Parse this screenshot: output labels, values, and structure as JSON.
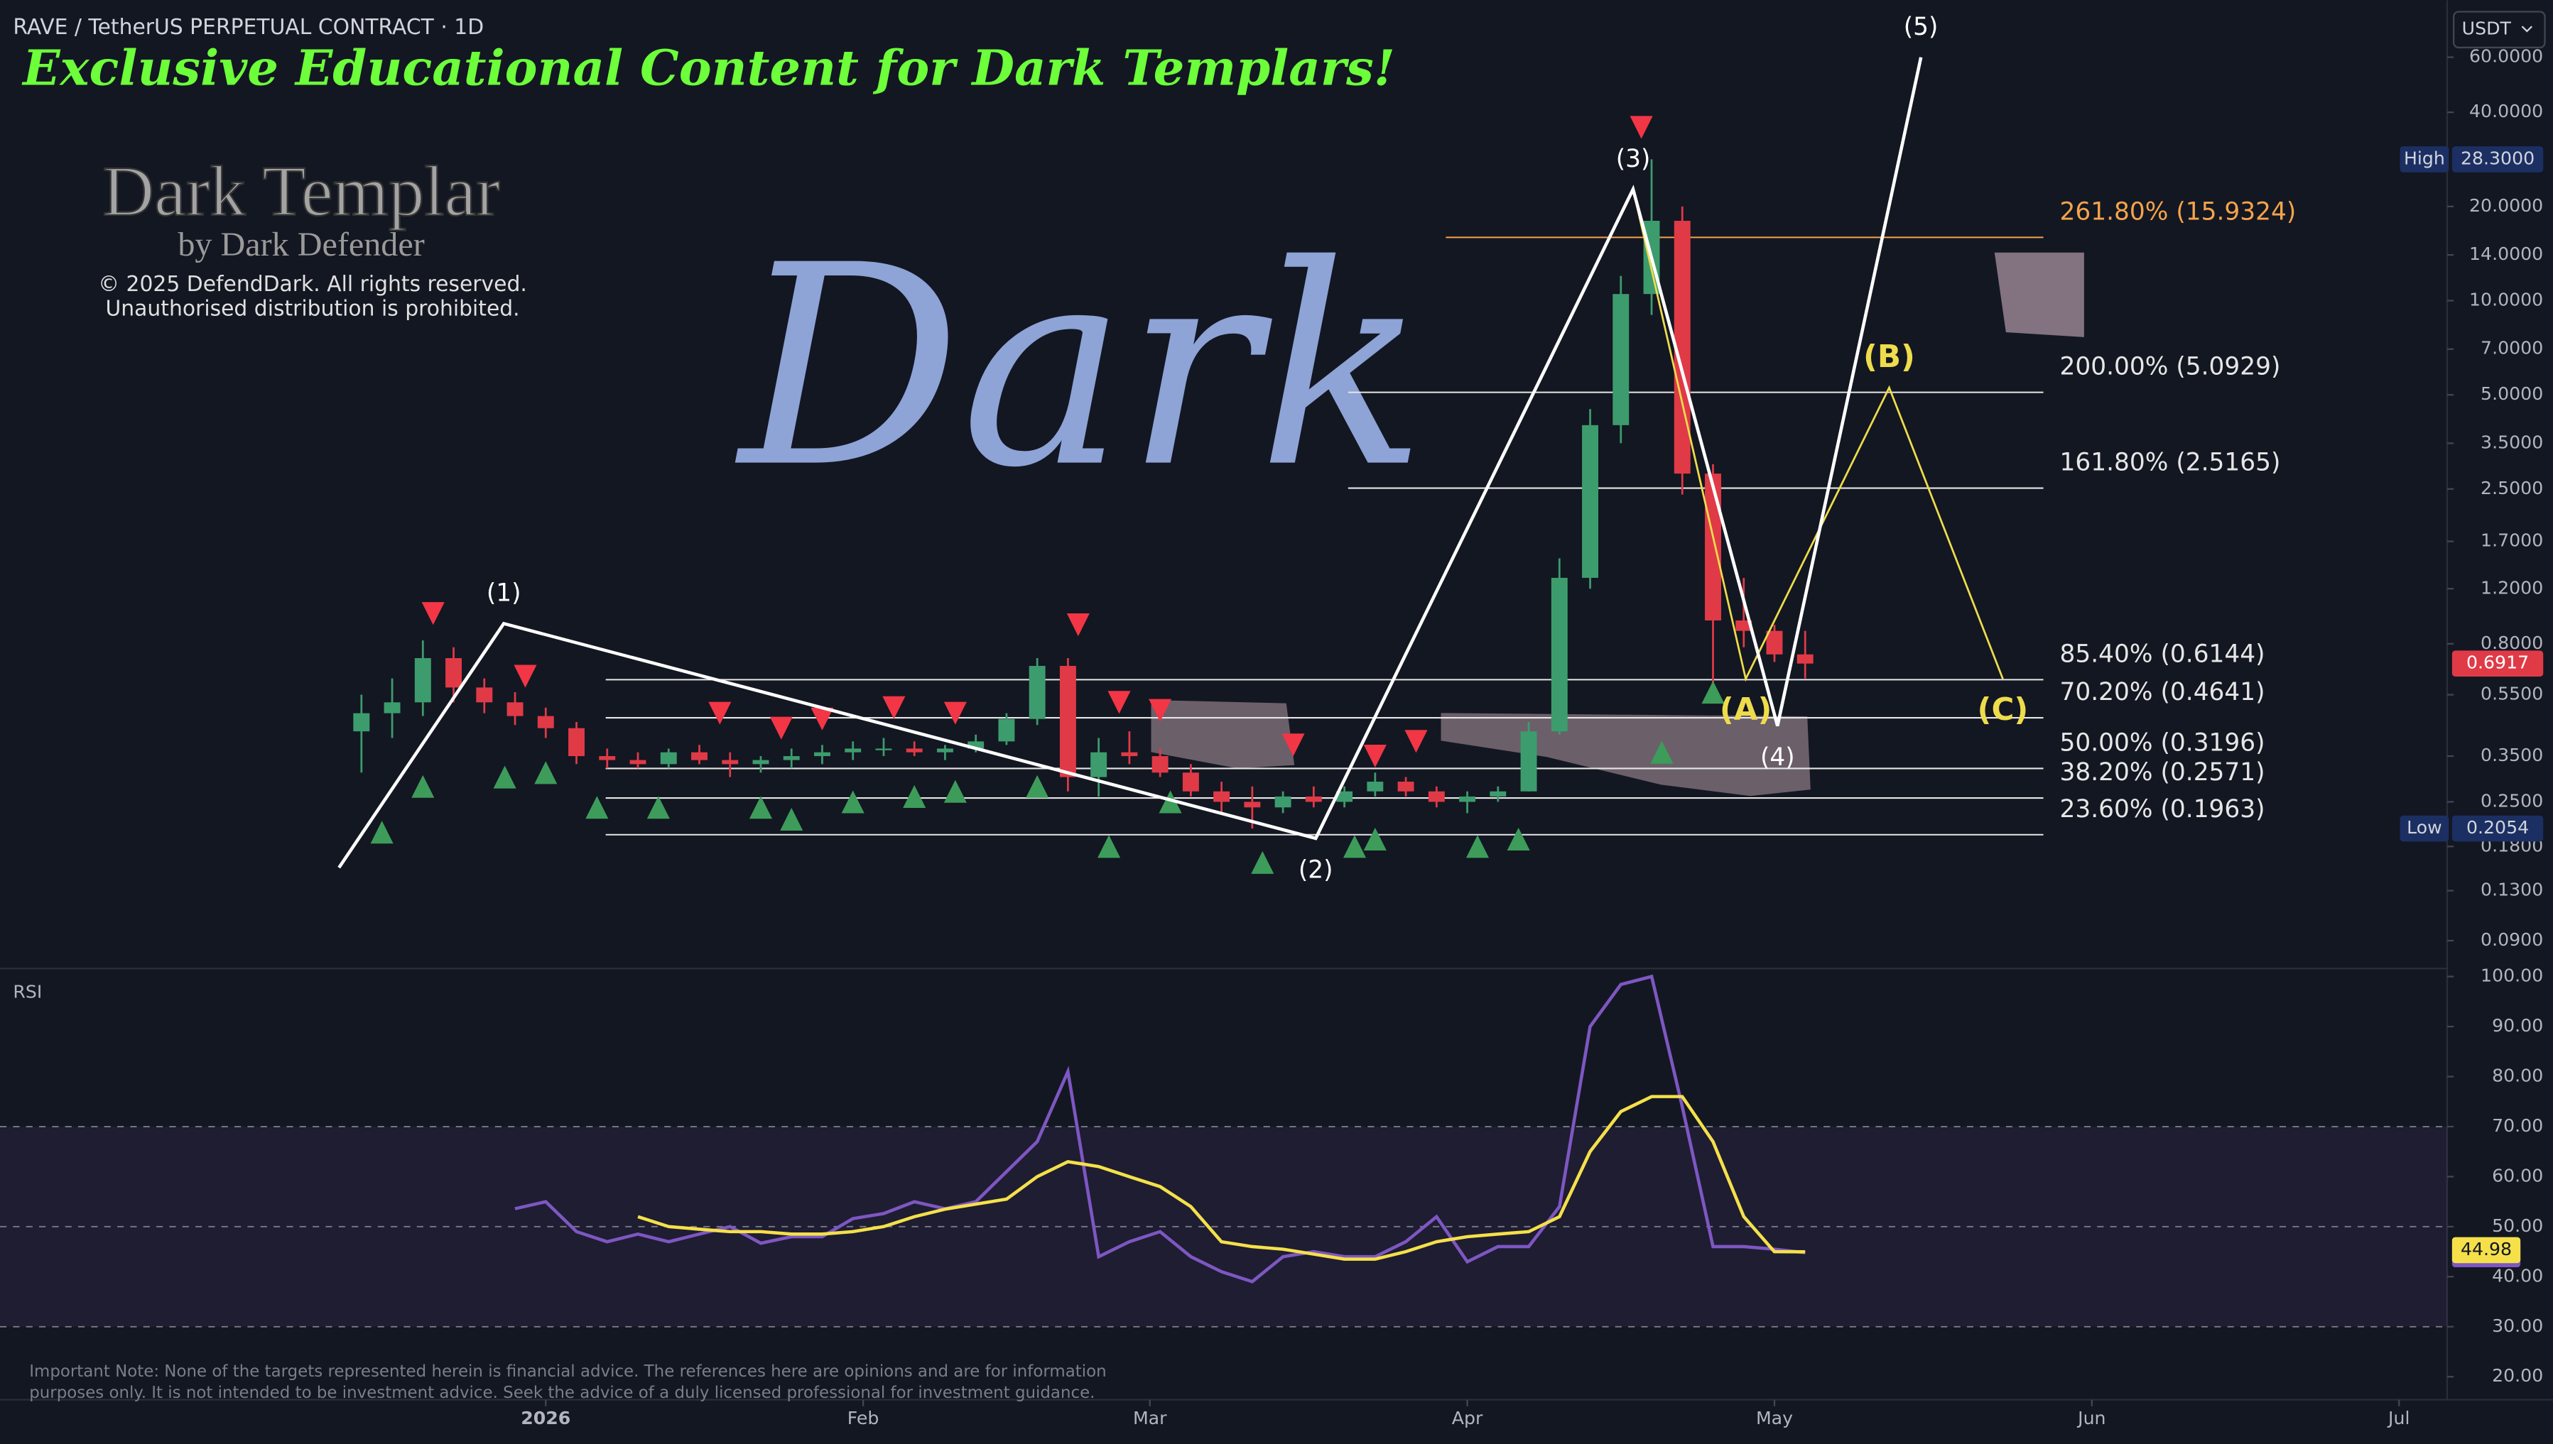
{
  "watermark": {
    "headline": "Exclusive Educational Content for Dark Templars!",
    "brand": "Dark Templar",
    "byline": "by Dark Defender",
    "copyright": "© 2025 DefendDark. All rights reserved.",
    "notice": "Unauthorised distribution is prohibited.",
    "word": "Dark"
  },
  "note": [
    "Important Note: None of the targets represented herein is financial advice. The references here are opinions and are for information",
    "purposes only. It is not intended to be investment advice. Seek the advice of a duly licensed professional for investment guidance."
  ],
  "currency": "USDT",
  "chart_data": [
    {
      "type": "candlestick",
      "title": "RAVE / TetherUS PERPETUAL CONTRACT · 1D",
      "x": [
        -18,
        -15,
        -12,
        -9,
        -6,
        -3,
        0,
        3,
        6,
        9,
        12,
        15,
        18,
        21,
        24,
        27,
        30,
        33,
        36,
        39,
        42,
        45,
        48,
        51,
        54,
        57,
        60,
        63,
        66,
        69,
        72,
        75,
        78,
        81,
        84,
        87,
        90,
        93,
        96,
        99,
        102,
        105,
        108,
        111,
        114,
        117,
        120,
        123
      ],
      "open": [
        0.42,
        0.48,
        0.52,
        0.72,
        0.58,
        0.52,
        0.47,
        0.43,
        0.35,
        0.34,
        0.33,
        0.36,
        0.34,
        0.33,
        0.34,
        0.35,
        0.36,
        0.37,
        0.37,
        0.36,
        0.37,
        0.39,
        0.46,
        0.68,
        0.3,
        0.36,
        0.35,
        0.31,
        0.27,
        0.25,
        0.24,
        0.26,
        0.25,
        0.27,
        0.29,
        0.27,
        0.25,
        0.26,
        0.27,
        0.42,
        1.3,
        4.0,
        10.5,
        18,
        2.8,
        0.95,
        0.88,
        0.74
      ],
      "high": [
        0.55,
        0.62,
        0.82,
        0.78,
        0.62,
        0.56,
        0.5,
        0.45,
        0.37,
        0.36,
        0.37,
        0.38,
        0.36,
        0.35,
        0.37,
        0.38,
        0.39,
        0.4,
        0.39,
        0.38,
        0.41,
        0.48,
        0.72,
        0.72,
        0.4,
        0.42,
        0.37,
        0.33,
        0.29,
        0.28,
        0.27,
        0.28,
        0.28,
        0.31,
        0.3,
        0.28,
        0.27,
        0.28,
        0.45,
        1.5,
        4.5,
        12,
        28.3,
        20,
        3.0,
        1.3,
        0.92,
        0.88
      ],
      "low": [
        0.31,
        0.4,
        0.47,
        0.52,
        0.48,
        0.44,
        0.4,
        0.33,
        0.32,
        0.32,
        0.32,
        0.33,
        0.3,
        0.31,
        0.32,
        0.33,
        0.34,
        0.35,
        0.35,
        0.34,
        0.36,
        0.38,
        0.44,
        0.27,
        0.26,
        0.33,
        0.3,
        0.26,
        0.23,
        0.2054,
        0.23,
        0.24,
        0.24,
        0.26,
        0.26,
        0.24,
        0.23,
        0.25,
        0.27,
        0.41,
        1.2,
        3.5,
        9,
        2.4,
        0.58,
        0.78,
        0.7,
        0.62
      ],
      "close": [
        0.48,
        0.52,
        0.72,
        0.58,
        0.52,
        0.47,
        0.43,
        0.35,
        0.34,
        0.33,
        0.36,
        0.34,
        0.33,
        0.34,
        0.35,
        0.36,
        0.37,
        0.37,
        0.36,
        0.37,
        0.39,
        0.46,
        0.68,
        0.3,
        0.36,
        0.35,
        0.31,
        0.27,
        0.25,
        0.24,
        0.26,
        0.25,
        0.27,
        0.29,
        0.27,
        0.25,
        0.26,
        0.27,
        0.42,
        1.3,
        4.0,
        10.5,
        18,
        2.8,
        0.95,
        0.88,
        0.74,
        0.6917
      ],
      "up_color": "#3d9c6d",
      "down_color": "#e03a47",
      "log_scale": true,
      "grid": false,
      "xlim": [
        -53.3,
        185.7
      ],
      "ylim": [
        0.0733,
        91.2
      ],
      "xticks": [
        {
          "value": 0,
          "label": "2026"
        },
        {
          "value": 31,
          "label": "Feb"
        },
        {
          "value": 59,
          "label": "Mar"
        },
        {
          "value": 90,
          "label": "Apr"
        },
        {
          "value": 120,
          "label": "May"
        },
        {
          "value": 151,
          "label": "Jun"
        },
        {
          "value": 181,
          "label": "Jul"
        }
      ],
      "yticks": [
        {
          "value": 60,
          "label": "60.0000"
        },
        {
          "value": 40,
          "label": "40.0000"
        },
        {
          "value": 20,
          "label": "20.0000"
        },
        {
          "value": 14,
          "label": "14.0000"
        },
        {
          "value": 10,
          "label": "10.0000"
        },
        {
          "value": 7,
          "label": "7.0000"
        },
        {
          "value": 5,
          "label": "5.0000"
        },
        {
          "value": 3.5,
          "label": "3.5000"
        },
        {
          "value": 2.5,
          "label": "2.5000"
        },
        {
          "value": 1.7,
          "label": "1.7000"
        },
        {
          "value": 1.2,
          "label": "1.2000"
        },
        {
          "value": 0.8,
          "label": "0.8000"
        },
        {
          "value": 0.55,
          "label": "0.5500"
        },
        {
          "value": 0.35,
          "label": "0.3500"
        },
        {
          "value": 0.25,
          "label": "0.2500"
        },
        {
          "value": 0.18,
          "label": "0.1800"
        },
        {
          "value": 0.13,
          "label": "0.1300"
        },
        {
          "value": 0.09,
          "label": "0.0900"
        }
      ],
      "high_label": "High",
      "high_value_label": "28.3000",
      "low_label": "Low",
      "fib_levels": [
        {
          "label": "261.80% (15.9324)",
          "value": 15.9324,
          "color": "#f5a34b"
        },
        {
          "label": "200.00% (5.0929)",
          "value": 5.0929,
          "color": "#e6e6e6"
        },
        {
          "label": "161.80% (2.5165)",
          "value": 2.5165,
          "color": "#e6e6e6"
        },
        {
          "label": "85.40% (0.6144)",
          "value": 0.6144,
          "color": "#e6e6e6"
        },
        {
          "label": "70.20% (0.4641)",
          "value": 0.4641,
          "color": "#e6e6e6"
        },
        {
          "label": "50.00% (0.3196)",
          "value": 0.3196,
          "color": "#e6e6e6"
        },
        {
          "label": "38.20% (0.2571)",
          "value": 0.2571,
          "color": "#e6e6e6"
        },
        {
          "label": "23.60% (0.1963)",
          "value": 0.1963,
          "color": "#e6e6e6"
        }
      ],
      "waves": {
        "x": [
          -20.2,
          -4.1,
          75.2,
          106.2,
          120.3,
          134.3
        ],
        "y": [
          0.154,
          0.929,
          0.191,
          22.7,
          0.437,
          60
        ],
        "labels": [
          null,
          "(1)",
          "(2)",
          "(3)",
          "(4)",
          "(5)"
        ],
        "color": "#ffffff"
      },
      "corrective": {
        "x": [
          106.2,
          117.2,
          131.2,
          142.3
        ],
        "y": [
          22.7,
          0.618,
          5.27,
          0.618
        ],
        "labels": [
          null,
          "(A)",
          "(B)",
          "(C)"
        ],
        "color": "#eedc4c"
      },
      "sell_signals": {
        "x": [
          -11,
          -2,
          17,
          23,
          27,
          34,
          40,
          52,
          56,
          60,
          73,
          81,
          85,
          107
        ],
        "y": [
          1.0,
          0.63,
          0.48,
          0.43,
          0.46,
          0.5,
          0.48,
          0.92,
          0.52,
          0.49,
          0.38,
          0.35,
          0.39,
          35.8
        ],
        "color": "#f23645"
      },
      "buy_signals": {
        "x": [
          -16,
          -12,
          -4,
          0,
          5,
          11,
          21,
          24,
          30,
          36,
          40,
          48,
          55,
          61,
          70,
          79,
          81,
          91,
          95,
          109,
          114
        ],
        "y": [
          0.2,
          0.28,
          0.3,
          0.31,
          0.24,
          0.24,
          0.24,
          0.22,
          0.25,
          0.26,
          0.27,
          0.28,
          0.18,
          0.25,
          0.16,
          0.18,
          0.19,
          0.18,
          0.19,
          0.36,
          0.56
        ],
        "color": "#3d9c5a"
      }
    },
    {
      "type": "line",
      "title": "RSI",
      "x": [
        -3,
        0,
        3,
        6,
        9,
        12,
        15,
        18,
        21,
        24,
        27,
        30,
        33,
        36,
        39,
        42,
        45,
        48,
        51,
        54,
        57,
        60,
        63,
        66,
        69,
        72,
        75,
        78,
        81,
        84,
        87,
        90,
        93,
        96,
        99,
        102,
        105,
        108,
        111,
        114,
        117,
        120,
        123
      ],
      "series": [
        {
          "color": "#7e57c2",
          "values": [
            53.6,
            55,
            49,
            47,
            48.5,
            47,
            48.5,
            50,
            46.7,
            48,
            48,
            51.6,
            52.6,
            55,
            53.6,
            55,
            61,
            67,
            81,
            44,
            47,
            49,
            44,
            41,
            39,
            44,
            45,
            44,
            44,
            47,
            52,
            43,
            46,
            46,
            54,
            90,
            98.4,
            100,
            74,
            46,
            46,
            45.5,
            44.81
          ]
        },
        {
          "color": "#f5e04a",
          "values": [
            null,
            null,
            null,
            null,
            52,
            50,
            49.5,
            49,
            49,
            48.5,
            48.5,
            49,
            50,
            52,
            53.5,
            54.5,
            55.5,
            60,
            63,
            62,
            60,
            58,
            54,
            47,
            46,
            45.5,
            44.5,
            43.5,
            43.5,
            45,
            47,
            48,
            48.5,
            49,
            52,
            65,
            73,
            76,
            76,
            67,
            52,
            45,
            44.98
          ]
        }
      ],
      "xlim": [
        -53.3,
        185.7
      ],
      "ylim": [
        15.4,
        101.6
      ],
      "yticks": [
        {
          "value": 100,
          "label": "100.00"
        },
        {
          "value": 90,
          "label": "90.00"
        },
        {
          "value": 80,
          "label": "80.00"
        },
        {
          "value": 70,
          "label": "70.00"
        },
        {
          "value": 60,
          "label": "60.00"
        },
        {
          "value": 50,
          "label": "50.00"
        },
        {
          "value": 40,
          "label": "40.00"
        },
        {
          "value": 30,
          "label": "30.00"
        },
        {
          "value": 20,
          "label": "20.00"
        }
      ],
      "levels": [
        70,
        50,
        30
      ]
    }
  ]
}
